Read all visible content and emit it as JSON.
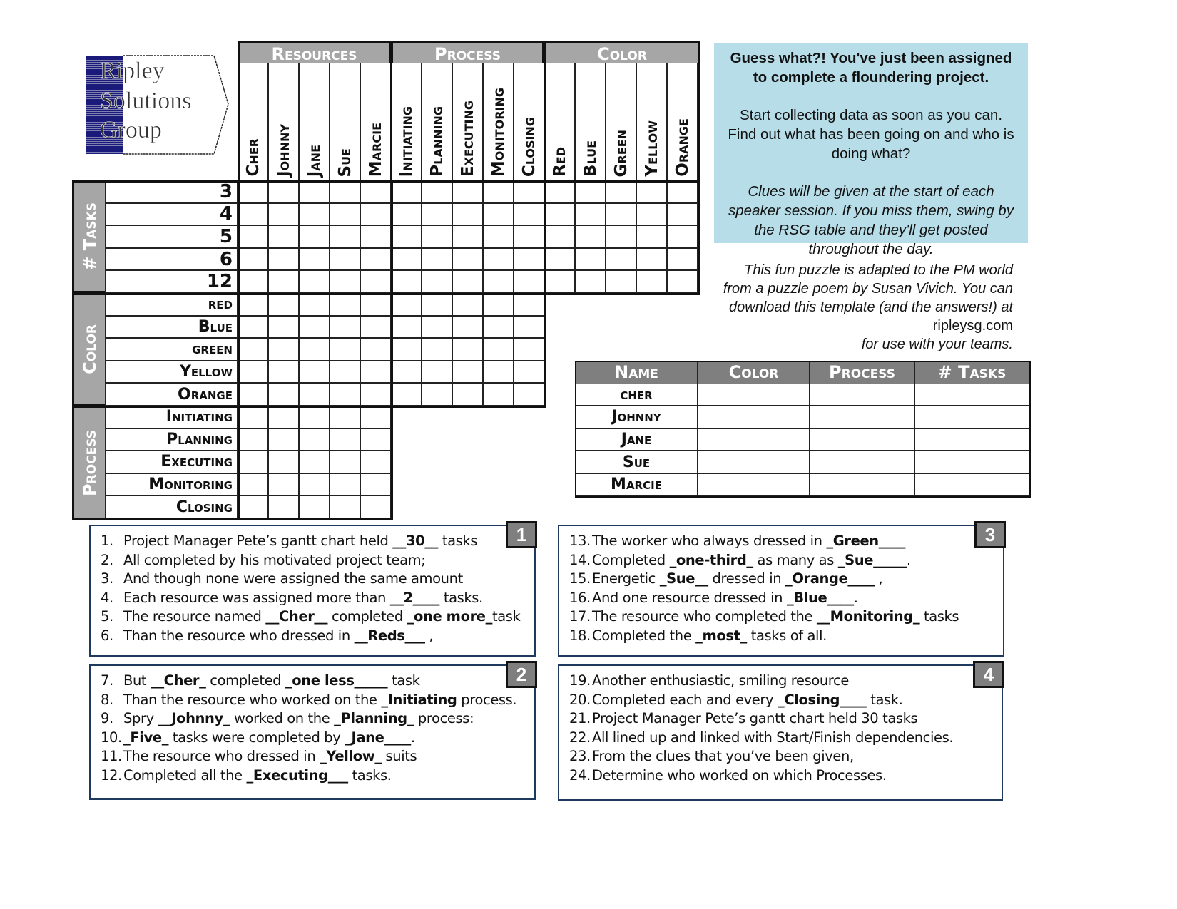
{
  "logo": {
    "lines": [
      "Ripley",
      "Solutions",
      "Group"
    ],
    "color": "#1a1a7a"
  },
  "grid": {
    "groups": [
      {
        "label": "Resources",
        "columns": [
          "Cher",
          "Johnny",
          "Jane",
          "Sue",
          "Marcie"
        ]
      },
      {
        "label": "Process",
        "columns": [
          "Initiating",
          "Planning",
          "Executing",
          "Monitoring",
          "Closing"
        ]
      },
      {
        "label": "Color",
        "columns": [
          "Red",
          "Blue",
          "Green",
          "Yellow",
          "Orange"
        ]
      }
    ],
    "row_groups": [
      {
        "label": "# Tasks",
        "rows": [
          "3",
          "4",
          "5",
          "6",
          "12"
        ]
      },
      {
        "label": "Color",
        "rows": [
          "red",
          "Blue",
          "green",
          "Yellow",
          "Orange"
        ]
      },
      {
        "label": "Process",
        "rows": [
          "Initiating",
          "Planning",
          "Executing",
          "Monitoring",
          "Closing"
        ]
      }
    ],
    "header_color": "#a6a6a6"
  },
  "info": {
    "headline": "Guess what?! You've just been assigned to complete a floundering project.",
    "body": "Start collecting data as soon as you can.  Find out what has been going on and who is doing what?",
    "note": "Clues will be given at the start of each speaker session.  If you miss them, swing by the RSG table and they'll get posted throughout the day.",
    "background": "#b7dde8"
  },
  "credit": {
    "text_italic": "This fun puzzle is adapted to the PM world from a puzzle poem by Susan Vivich.  You can download this template (and the answers!) at",
    "site": "ripleysg.com",
    "tail": "for use with your teams."
  },
  "summary_table": {
    "headers": [
      "Name",
      "Color",
      "Process",
      "# Tasks"
    ],
    "names": [
      "cher",
      "Johnny",
      "Jane",
      "Sue",
      "Marcie"
    ]
  },
  "clue_boxes": [
    {
      "badge": "1",
      "lines": [
        {
          "num": "1.",
          "segs": [
            {
              "t": "Project Manager Pete’s gantt chart held "
            },
            {
              "t": "__30__",
              "b": true
            },
            {
              "t": " tasks"
            }
          ]
        },
        {
          "num": "2.",
          "segs": [
            {
              "t": "All completed by his motivated project team;"
            }
          ]
        },
        {
          "num": "3.",
          "segs": [
            {
              "t": "And though none were assigned the same amount"
            }
          ]
        },
        {
          "num": "4.",
          "segs": [
            {
              "t": "Each resource was assigned more than "
            },
            {
              "t": "__2____",
              "b": true
            },
            {
              "t": " tasks."
            }
          ]
        },
        {
          "num": "5.",
          "segs": [
            {
              "t": "The resource named "
            },
            {
              "t": "__Cher__",
              "b": true
            },
            {
              "t": " completed "
            },
            {
              "t": "_one more_",
              "b": true
            },
            {
              "t": "task"
            }
          ]
        },
        {
          "num": "6.",
          "segs": [
            {
              "t": "Than the resource who dressed in "
            },
            {
              "t": "__Reds___",
              "b": true
            },
            {
              "t": " ,"
            }
          ]
        }
      ]
    },
    {
      "badge": "2",
      "lines": [
        {
          "num": "7.",
          "segs": [
            {
              "t": "But "
            },
            {
              "t": "__Cher_",
              "b": true
            },
            {
              "t": " completed "
            },
            {
              "t": "_one less_____",
              "b": true
            },
            {
              "t": " task"
            }
          ]
        },
        {
          "num": "8.",
          "segs": [
            {
              "t": "Than the resource who worked on the "
            },
            {
              "t": "_Initiating",
              "b": true
            },
            {
              "t": " process."
            }
          ]
        },
        {
          "num": "9.",
          "segs": [
            {
              "t": "Spry  "
            },
            {
              "t": "__Johnny_",
              "b": true
            },
            {
              "t": " worked on the "
            },
            {
              "t": "_Planning_",
              "b": true
            },
            {
              "t": " process:"
            }
          ]
        },
        {
          "num": "10.",
          "segs": [
            {
              "t": "_Five_",
              "b": true
            },
            {
              "t": " tasks were completed by "
            },
            {
              "t": "_Jane____",
              "b": true
            },
            {
              "t": "."
            }
          ]
        },
        {
          "num": "11.",
          "segs": [
            {
              "t": "The resource who dressed in "
            },
            {
              "t": "_Yellow_",
              "b": true
            },
            {
              "t": " suits"
            }
          ]
        },
        {
          "num": "12.",
          "segs": [
            {
              "t": "Completed all the "
            },
            {
              "t": "_Executing___",
              "b": true
            },
            {
              "t": " tasks."
            }
          ]
        }
      ]
    },
    {
      "badge": "3",
      "lines": [
        {
          "num": "13.",
          "segs": [
            {
              "t": "The worker who always dressed in "
            },
            {
              "t": "_Green____",
              "b": true
            }
          ]
        },
        {
          "num": "14.",
          "segs": [
            {
              "t": "Completed "
            },
            {
              "t": "_one-third_",
              "b": true
            },
            {
              "t": " as many as "
            },
            {
              "t": "_Sue_____",
              "b": true
            },
            {
              "t": "."
            }
          ]
        },
        {
          "num": "15.",
          "segs": [
            {
              "t": "Energetic "
            },
            {
              "t": "_Sue__",
              "b": true
            },
            {
              "t": " dressed in "
            },
            {
              "t": "_Orange____",
              "b": true
            },
            {
              "t": " ,"
            }
          ]
        },
        {
          "num": "16.",
          "segs": [
            {
              "t": "And one resource dressed in "
            },
            {
              "t": "_Blue____",
              "b": true
            },
            {
              "t": "."
            }
          ]
        },
        {
          "num": "17.",
          "segs": [
            {
              "t": "The resource who completed the "
            },
            {
              "t": "__Monitoring_",
              "b": true
            },
            {
              "t": " tasks"
            }
          ]
        },
        {
          "num": "18.",
          "segs": [
            {
              "t": "Completed the "
            },
            {
              "t": "_most_",
              "b": true
            },
            {
              "t": " tasks of all."
            }
          ]
        }
      ]
    },
    {
      "badge": "4",
      "lines": [
        {
          "num": "19.",
          "segs": [
            {
              "t": "Another enthusiastic, smiling resource"
            }
          ]
        },
        {
          "num": "20.",
          "segs": [
            {
              "t": "Completed each and every "
            },
            {
              "t": "_Closing____",
              "b": true
            },
            {
              "t": " task."
            }
          ]
        },
        {
          "num": "21.",
          "segs": [
            {
              "t": "Project Manager Pete’s gantt chart held 30 tasks"
            }
          ]
        },
        {
          "num": "22.",
          "segs": [
            {
              "t": "All lined up and linked with Start/Finish dependencies."
            }
          ]
        },
        {
          "num": "23.",
          "segs": [
            {
              "t": "From the clues that you’ve been given,"
            }
          ]
        },
        {
          "num": "24.",
          "segs": [
            {
              "t": "Determine who worked on which Processes."
            }
          ]
        }
      ]
    }
  ]
}
